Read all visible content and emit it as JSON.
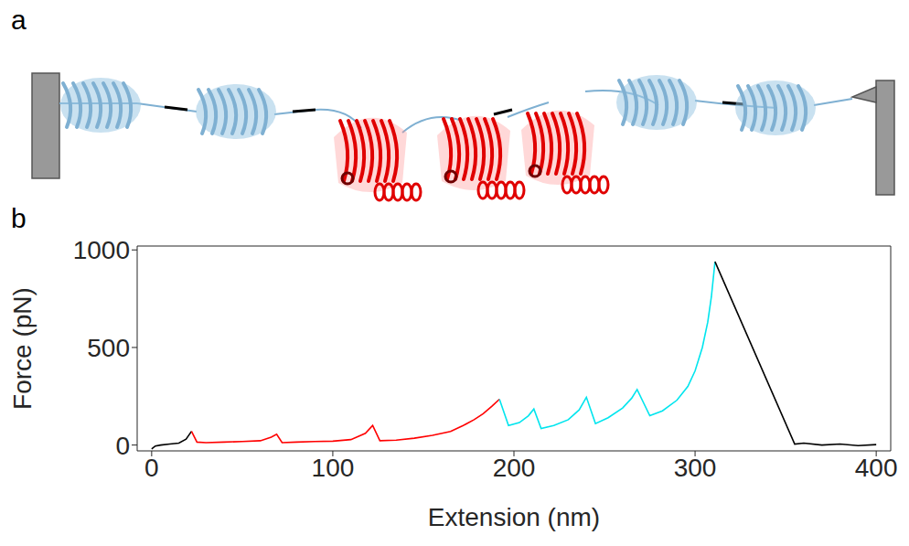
{
  "panel_labels": [
    "a",
    "b"
  ],
  "chart_data": {
    "type": "line",
    "x_label": "Extension (nm)",
    "y_label": "Force (pN)",
    "xlim": [
      -8,
      408
    ],
    "xticks": [
      0,
      100,
      200,
      300,
      400
    ],
    "ylim": [
      -30,
      1020
    ],
    "yticks": [
      0,
      500,
      1000
    ],
    "grid": false,
    "series": [
      {
        "color": "#000000",
        "x": [
          0,
          2,
          5,
          10,
          15,
          19,
          22
        ],
        "values": [
          -20,
          -5,
          0,
          5,
          10,
          30,
          70
        ]
      },
      {
        "color": "#ff0000",
        "x": [
          22,
          25,
          30,
          40,
          50,
          60,
          66,
          69,
          72,
          80,
          90,
          100,
          110,
          118,
          122,
          126,
          135,
          145,
          155,
          165,
          172,
          178,
          183,
          188,
          192
        ],
        "values": [
          70,
          15,
          12,
          15,
          18,
          22,
          40,
          55,
          12,
          15,
          18,
          20,
          28,
          60,
          100,
          22,
          25,
          35,
          50,
          70,
          100,
          130,
          160,
          200,
          235
        ]
      },
      {
        "color": "#00e5ee",
        "x": [
          192,
          197,
          203,
          208,
          211,
          215,
          222,
          230,
          236,
          240,
          245,
          252,
          260,
          265,
          268,
          275,
          282,
          290,
          296,
          300,
          304,
          307,
          309,
          311
        ],
        "values": [
          235,
          100,
          115,
          150,
          185,
          85,
          100,
          130,
          180,
          245,
          110,
          140,
          190,
          240,
          285,
          150,
          175,
          230,
          300,
          380,
          500,
          630,
          760,
          940
        ]
      },
      {
        "color": "#000000",
        "x": [
          311,
          355,
          360,
          370,
          380,
          390,
          400
        ],
        "values": [
          940,
          5,
          10,
          0,
          5,
          -3,
          2
        ]
      }
    ]
  }
}
